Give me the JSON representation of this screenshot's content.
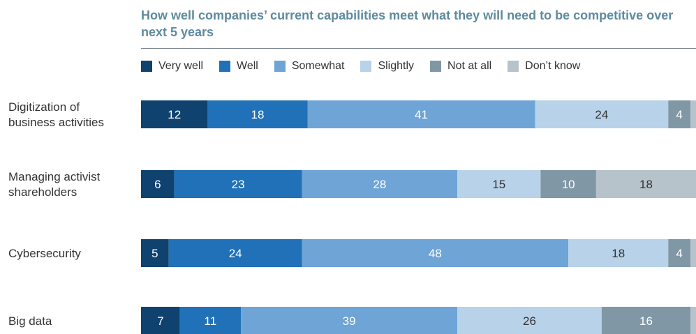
{
  "chart_data": {
    "type": "bar",
    "orientation": "horizontal",
    "stacked": true,
    "title": "How well companies’ current capabilities meet what they will need to be competitive over next 5 years",
    "legend_position": "top",
    "categories": [
      [
        "Digitization of",
        "business activities"
      ],
      [
        "Managing activist",
        "shareholders"
      ],
      [
        "Cybersecurity"
      ],
      [
        "Big data"
      ]
    ],
    "series": [
      {
        "name": "Very well",
        "color": "#0f426f",
        "values": [
          12,
          6,
          5,
          7
        ]
      },
      {
        "name": "Well",
        "color": "#2171b8",
        "values": [
          18,
          23,
          24,
          11
        ]
      },
      {
        "name": "Somewhat",
        "color": "#6ea4d6",
        "values": [
          41,
          28,
          48,
          39
        ]
      },
      {
        "name": "Slightly",
        "color": "#b8d2e9",
        "values": [
          24,
          15,
          18,
          26
        ]
      },
      {
        "name": "Not at all",
        "color": "#8097a6",
        "values": [
          4,
          10,
          4,
          16
        ]
      },
      {
        "name": "Don’t know",
        "color": "#b6c3cb",
        "values": [
          1,
          18,
          1,
          1
        ]
      }
    ],
    "data_label_colors": [
      "#ffffff",
      "#ffffff",
      "#ffffff",
      "#333333",
      "#ffffff",
      "#333333"
    ],
    "data_label_min_value": 2,
    "xlim": [
      0,
      100
    ]
  }
}
